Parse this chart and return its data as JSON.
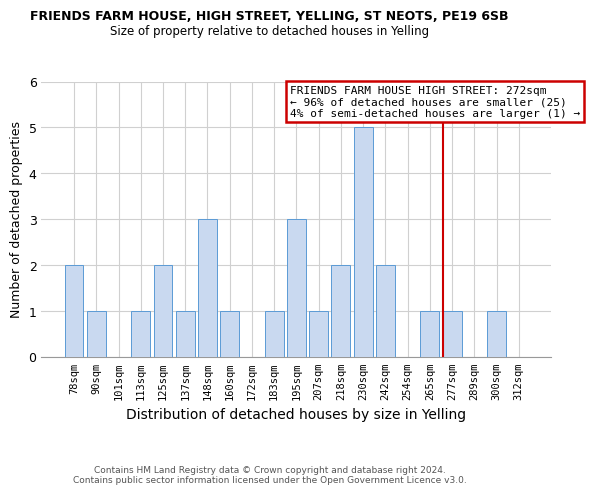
{
  "title": "FRIENDS FARM HOUSE, HIGH STREET, YELLING, ST NEOTS, PE19 6SB",
  "subtitle": "Size of property relative to detached houses in Yelling",
  "xlabel": "Distribution of detached houses by size in Yelling",
  "ylabel": "Number of detached properties",
  "categories": [
    "78sqm",
    "90sqm",
    "101sqm",
    "113sqm",
    "125sqm",
    "137sqm",
    "148sqm",
    "160sqm",
    "172sqm",
    "183sqm",
    "195sqm",
    "207sqm",
    "218sqm",
    "230sqm",
    "242sqm",
    "254sqm",
    "265sqm",
    "277sqm",
    "289sqm",
    "300sqm",
    "312sqm"
  ],
  "values": [
    2,
    1,
    0,
    1,
    2,
    1,
    3,
    1,
    0,
    1,
    3,
    1,
    2,
    5,
    2,
    0,
    1,
    1,
    0,
    1,
    0
  ],
  "bar_color": "#c9d9f0",
  "bar_edge_color": "#5b9bd5",
  "ylim": [
    0,
    6
  ],
  "yticks": [
    0,
    1,
    2,
    3,
    4,
    5,
    6
  ],
  "annotation_line_color": "#cc0000",
  "annotation_box_text": "FRIENDS FARM HOUSE HIGH STREET: 272sqm\n← 96% of detached houses are smaller (25)\n4% of semi-detached houses are larger (1) →",
  "annotation_box_edge_color": "#cc0000",
  "footer_line1": "Contains HM Land Registry data © Crown copyright and database right 2024.",
  "footer_line2": "Contains public sector information licensed under the Open Government Licence v3.0.",
  "bg_color": "#ffffff",
  "grid_color": "#d0d0d0",
  "property_sqm": 272,
  "sqm_min": 78,
  "sqm_max": 312
}
